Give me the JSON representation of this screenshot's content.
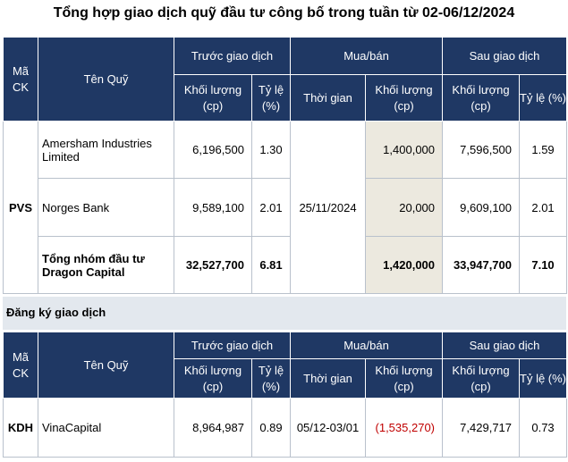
{
  "title": "Tổng hợp giao dịch quỹ đầu tư công bố trong tuần từ 02-06/12/2024",
  "headers": {
    "code": "Mã CK",
    "fund": "Tên Quỹ",
    "before": "Trước giao dịch",
    "trade": "Mua/bán",
    "after": "Sau giao dịch",
    "volume": "Khối lượng (cp)",
    "ratio": "Tỷ lệ (%)",
    "time": "Thời gian"
  },
  "table1": {
    "code": "PVS",
    "date": "25/11/2024",
    "rows": [
      {
        "fund": "Amersham Industries Limited",
        "before_vol": "6,196,500",
        "before_pct": "1.30",
        "trade_vol": "1,400,000",
        "after_vol": "7,596,500",
        "after_pct": "1.59"
      },
      {
        "fund": "Norges Bank",
        "before_vol": "9,589,100",
        "before_pct": "2.01",
        "trade_vol": "20,000",
        "after_vol": "9,609,100",
        "after_pct": "2.01"
      },
      {
        "fund": "Tổng nhóm đầu tư Dragon Capital",
        "before_vol": "32,527,700",
        "before_pct": "6.81",
        "trade_vol": "1,420,000",
        "after_vol": "33,947,700",
        "after_pct": "7.10"
      }
    ]
  },
  "section2_title": "Đăng ký giao dịch",
  "table2": {
    "rows": [
      {
        "code": "KDH",
        "fund": "VinaCapital",
        "before_vol": "8,964,987",
        "before_pct": "0.89",
        "date": "05/12-03/01",
        "trade_vol": "(1,535,270)",
        "after_vol": "7,429,717",
        "after_pct": "0.73"
      }
    ]
  },
  "colors": {
    "header_bg": "#1f3864",
    "shade_bg": "#ece9df",
    "section_bg": "#e3e8ee",
    "negative": "#c00000",
    "border": "#b9c1cc"
  }
}
